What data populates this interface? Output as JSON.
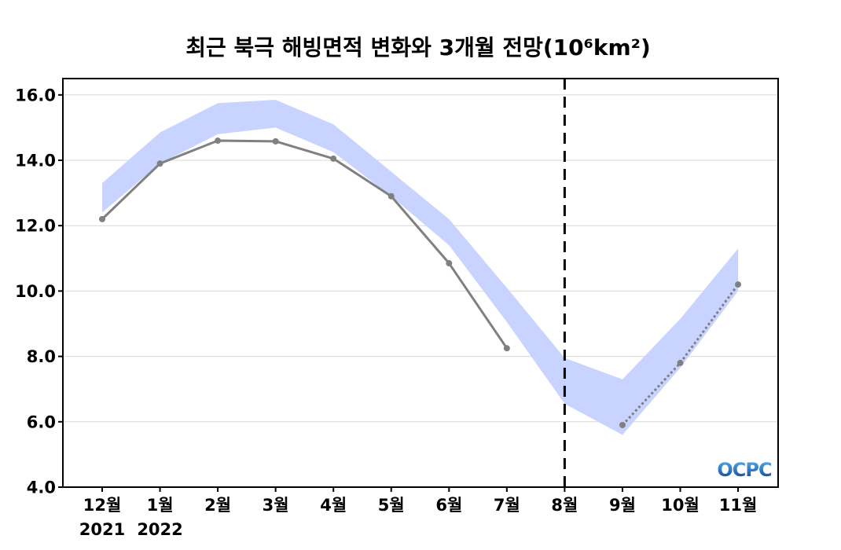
{
  "chart_data": {
    "type": "line",
    "title": "최근 북극 해빙면적 변화와 3개월 전망(10⁶km²)",
    "categories": [
      "12월",
      "1월",
      "2월",
      "3월",
      "4월",
      "5월",
      "6월",
      "7월",
      "8월",
      "9월",
      "10월",
      "11월"
    ],
    "category_sublabels": [
      "2021",
      "2022",
      "",
      "",
      "",
      "",
      "",
      "",
      "",
      "",
      "",
      ""
    ],
    "ylim": [
      4.0,
      16.5
    ],
    "yticks": [
      4,
      6,
      8,
      10,
      12,
      14,
      16
    ],
    "ytick_labels": [
      "4.0",
      "6.0",
      "8.0",
      "10.0",
      "12.0",
      "14.0",
      "16.0"
    ],
    "grid": "y",
    "grid_color": "#d9d9d9",
    "series": [
      {
        "line_style": "solid",
        "color": "#808080",
        "values": [
          12.2,
          13.9,
          14.6,
          14.58,
          14.05,
          12.9,
          10.85,
          8.25,
          null,
          null,
          null,
          null
        ]
      },
      {
        "line_style": "dotted",
        "color": "#808080",
        "values": [
          null,
          null,
          null,
          null,
          null,
          null,
          null,
          null,
          null,
          5.9,
          7.8,
          10.2
        ]
      }
    ],
    "band": {
      "color": "#c8d4ff",
      "upper": [
        13.3,
        14.85,
        15.75,
        15.85,
        15.1,
        13.65,
        12.2,
        10.1,
        7.95,
        7.3,
        9.15,
        11.3
      ],
      "lower": [
        12.4,
        13.9,
        14.8,
        15.0,
        14.25,
        12.9,
        11.4,
        9.05,
        6.55,
        5.6,
        7.65,
        10.0
      ]
    },
    "vline": {
      "category": "8월",
      "line_style": "dashed",
      "color": "#000000"
    }
  },
  "logo": {
    "text": "OCPC",
    "colors": [
      "#5ab4ee",
      "#0b3f94"
    ]
  }
}
